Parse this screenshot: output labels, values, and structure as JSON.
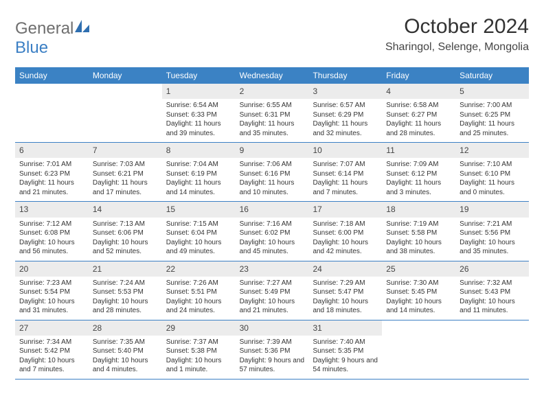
{
  "brand": {
    "text_general": "General",
    "text_blue": "Blue",
    "logo_color": "#2f6fb0"
  },
  "title": "October 2024",
  "location": "Sharingol, Selenge, Mongolia",
  "colors": {
    "header_bg": "#3b82c4",
    "header_text": "#ffffff",
    "rule": "#3b7fc4",
    "shaded_bg": "#ececec",
    "text": "#333333"
  },
  "daynames": [
    "Sunday",
    "Monday",
    "Tuesday",
    "Wednesday",
    "Thursday",
    "Friday",
    "Saturday"
  ],
  "weeks": [
    [
      {
        "empty": true
      },
      {
        "empty": true
      },
      {
        "num": "1",
        "sunrise": "6:54 AM",
        "sunset": "6:33 PM",
        "daylight": "11 hours and 39 minutes."
      },
      {
        "num": "2",
        "sunrise": "6:55 AM",
        "sunset": "6:31 PM",
        "daylight": "11 hours and 35 minutes."
      },
      {
        "num": "3",
        "sunrise": "6:57 AM",
        "sunset": "6:29 PM",
        "daylight": "11 hours and 32 minutes."
      },
      {
        "num": "4",
        "sunrise": "6:58 AM",
        "sunset": "6:27 PM",
        "daylight": "11 hours and 28 minutes."
      },
      {
        "num": "5",
        "sunrise": "7:00 AM",
        "sunset": "6:25 PM",
        "daylight": "11 hours and 25 minutes."
      }
    ],
    [
      {
        "num": "6",
        "sunrise": "7:01 AM",
        "sunset": "6:23 PM",
        "daylight": "11 hours and 21 minutes."
      },
      {
        "num": "7",
        "sunrise": "7:03 AM",
        "sunset": "6:21 PM",
        "daylight": "11 hours and 17 minutes."
      },
      {
        "num": "8",
        "sunrise": "7:04 AM",
        "sunset": "6:19 PM",
        "daylight": "11 hours and 14 minutes."
      },
      {
        "num": "9",
        "sunrise": "7:06 AM",
        "sunset": "6:16 PM",
        "daylight": "11 hours and 10 minutes."
      },
      {
        "num": "10",
        "sunrise": "7:07 AM",
        "sunset": "6:14 PM",
        "daylight": "11 hours and 7 minutes."
      },
      {
        "num": "11",
        "sunrise": "7:09 AM",
        "sunset": "6:12 PM",
        "daylight": "11 hours and 3 minutes."
      },
      {
        "num": "12",
        "sunrise": "7:10 AM",
        "sunset": "6:10 PM",
        "daylight": "11 hours and 0 minutes."
      }
    ],
    [
      {
        "num": "13",
        "sunrise": "7:12 AM",
        "sunset": "6:08 PM",
        "daylight": "10 hours and 56 minutes."
      },
      {
        "num": "14",
        "sunrise": "7:13 AM",
        "sunset": "6:06 PM",
        "daylight": "10 hours and 52 minutes."
      },
      {
        "num": "15",
        "sunrise": "7:15 AM",
        "sunset": "6:04 PM",
        "daylight": "10 hours and 49 minutes."
      },
      {
        "num": "16",
        "sunrise": "7:16 AM",
        "sunset": "6:02 PM",
        "daylight": "10 hours and 45 minutes."
      },
      {
        "num": "17",
        "sunrise": "7:18 AM",
        "sunset": "6:00 PM",
        "daylight": "10 hours and 42 minutes."
      },
      {
        "num": "18",
        "sunrise": "7:19 AM",
        "sunset": "5:58 PM",
        "daylight": "10 hours and 38 minutes."
      },
      {
        "num": "19",
        "sunrise": "7:21 AM",
        "sunset": "5:56 PM",
        "daylight": "10 hours and 35 minutes."
      }
    ],
    [
      {
        "num": "20",
        "sunrise": "7:23 AM",
        "sunset": "5:54 PM",
        "daylight": "10 hours and 31 minutes."
      },
      {
        "num": "21",
        "sunrise": "7:24 AM",
        "sunset": "5:53 PM",
        "daylight": "10 hours and 28 minutes."
      },
      {
        "num": "22",
        "sunrise": "7:26 AM",
        "sunset": "5:51 PM",
        "daylight": "10 hours and 24 minutes."
      },
      {
        "num": "23",
        "sunrise": "7:27 AM",
        "sunset": "5:49 PM",
        "daylight": "10 hours and 21 minutes."
      },
      {
        "num": "24",
        "sunrise": "7:29 AM",
        "sunset": "5:47 PM",
        "daylight": "10 hours and 18 minutes."
      },
      {
        "num": "25",
        "sunrise": "7:30 AM",
        "sunset": "5:45 PM",
        "daylight": "10 hours and 14 minutes."
      },
      {
        "num": "26",
        "sunrise": "7:32 AM",
        "sunset": "5:43 PM",
        "daylight": "10 hours and 11 minutes."
      }
    ],
    [
      {
        "num": "27",
        "sunrise": "7:34 AM",
        "sunset": "5:42 PM",
        "daylight": "10 hours and 7 minutes."
      },
      {
        "num": "28",
        "sunrise": "7:35 AM",
        "sunset": "5:40 PM",
        "daylight": "10 hours and 4 minutes."
      },
      {
        "num": "29",
        "sunrise": "7:37 AM",
        "sunset": "5:38 PM",
        "daylight": "10 hours and 1 minute."
      },
      {
        "num": "30",
        "sunrise": "7:39 AM",
        "sunset": "5:36 PM",
        "daylight": "9 hours and 57 minutes."
      },
      {
        "num": "31",
        "sunrise": "7:40 AM",
        "sunset": "5:35 PM",
        "daylight": "9 hours and 54 minutes."
      },
      {
        "empty": true
      },
      {
        "empty": true
      }
    ]
  ],
  "labels": {
    "sunrise": "Sunrise: ",
    "sunset": "Sunset: ",
    "daylight": "Daylight: "
  }
}
